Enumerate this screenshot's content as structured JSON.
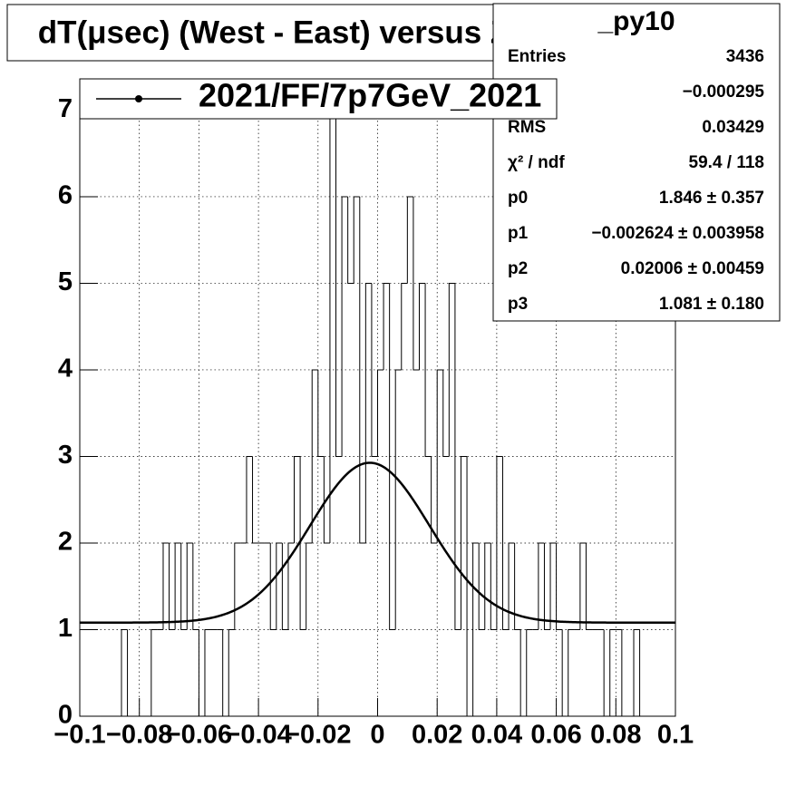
{
  "chart_data": {
    "type": "histogram",
    "title": "dT(μsec) (West - East) versus Z",
    "legend": {
      "label": "2021/FF/7p7GeV_2021"
    },
    "stats": {
      "title": "_py10",
      "rows": [
        {
          "label": "Entries",
          "value": "3436"
        },
        {
          "value": "−0.000295"
        },
        {
          "label": "RMS",
          "value": "0.03429"
        },
        {
          "label": "χ² / ndf",
          "value": "59.4 / 118"
        }
      ],
      "params": [
        {
          "name": "p0",
          "value": 1.846,
          "error": 0.357,
          "label": "1.846 ± 0.357"
        },
        {
          "name": "p1",
          "value": -0.002624,
          "error": 0.003958,
          "label": "−0.002624 ± 0.003958"
        },
        {
          "name": "p2",
          "value": 0.02006,
          "error": 0.00459,
          "label": "0.02006 ± 0.00459"
        },
        {
          "name": "p3",
          "value": 1.081,
          "error": 0.18,
          "label": "1.081 ± 0.180"
        }
      ]
    },
    "bins": [
      -0.1,
      -0.098,
      -0.096,
      -0.094,
      -0.092,
      -0.09,
      -0.088,
      -0.086,
      -0.084,
      -0.082,
      -0.08,
      -0.078,
      -0.076,
      -0.074,
      -0.072,
      -0.07,
      -0.068,
      -0.066,
      -0.064,
      -0.062,
      -0.06,
      -0.058,
      -0.056,
      -0.054,
      -0.052,
      -0.05,
      -0.048,
      -0.046,
      -0.044,
      -0.042,
      -0.04,
      -0.038,
      -0.036,
      -0.034,
      -0.032,
      -0.03,
      -0.028,
      -0.026,
      -0.024,
      -0.022,
      -0.02,
      -0.018,
      -0.016,
      -0.014,
      -0.012,
      -0.01,
      -0.008,
      -0.006,
      -0.004,
      -0.002,
      0,
      0.002,
      0.004,
      0.006,
      0.008,
      0.01,
      0.012,
      0.014,
      0.016,
      0.018,
      0.02,
      0.022,
      0.024,
      0.026,
      0.028,
      0.03,
      0.032,
      0.034,
      0.036,
      0.038,
      0.04,
      0.042,
      0.044,
      0.046,
      0.048,
      0.05,
      0.052,
      0.054,
      0.056,
      0.058,
      0.06,
      0.062,
      0.064,
      0.066,
      0.068,
      0.07,
      0.072,
      0.074,
      0.076,
      0.078,
      0.08,
      0.082,
      0.084,
      0.086,
      0.088,
      0.09,
      0.092,
      0.094,
      0.096,
      0.098,
      0.1
    ],
    "values": [
      0,
      0,
      0,
      0,
      0,
      0,
      0,
      1,
      0,
      0,
      0,
      0,
      1,
      1,
      2,
      1,
      2,
      1,
      2,
      1,
      0,
      1,
      1,
      1,
      0,
      1,
      2,
      2,
      3,
      2,
      2,
      2,
      1,
      2,
      1,
      2,
      3,
      1,
      2,
      4,
      3,
      2,
      7,
      3,
      6,
      5,
      6,
      2,
      5,
      3,
      4,
      5,
      1,
      4,
      5,
      6,
      4,
      5,
      3,
      2,
      4,
      3,
      5,
      1,
      3,
      0,
      2,
      1,
      2,
      1,
      3,
      1,
      2,
      1,
      0,
      1,
      1,
      2,
      1,
      2,
      1,
      0,
      1,
      1,
      2,
      1,
      1,
      1,
      0,
      1,
      1,
      0,
      0,
      1,
      0,
      0,
      0,
      0,
      0,
      0
    ],
    "xlim": [
      -0.1,
      0.1
    ],
    "ylim": [
      0,
      7.35
    ],
    "xticks": [
      {
        "value": -0.1,
        "label": "−0.1"
      },
      {
        "value": -0.08,
        "label": "−0.08"
      },
      {
        "value": -0.06,
        "label": "−0.06"
      },
      {
        "value": -0.04,
        "label": "−0.04"
      },
      {
        "value": -0.02,
        "label": "−0.02"
      },
      0,
      0.02,
      0.04,
      0.06,
      0.08,
      0.1
    ],
    "yticks": [
      0,
      1,
      2,
      3,
      4,
      5,
      6,
      7
    ],
    "grid": true,
    "color": "#000000"
  }
}
